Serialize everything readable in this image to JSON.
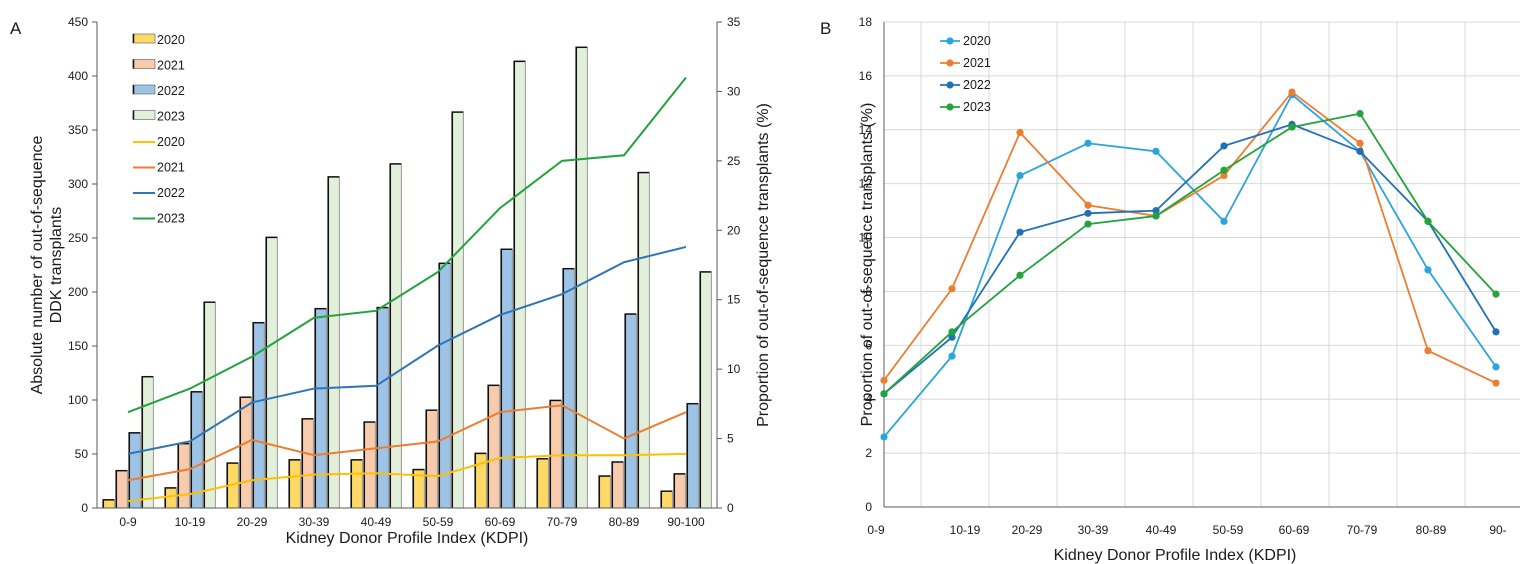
{
  "panel_a_label": "A",
  "panel_b_label": "B",
  "chart_data": [
    {
      "panel": "A",
      "type": "bar",
      "categories": [
        "0-9",
        "10-19",
        "20-29",
        "30-39",
        "40-49",
        "50-59",
        "60-69",
        "70-79",
        "80-89",
        "90-100"
      ],
      "xlabel": "Kidney Donor Profile Index (KDPI)",
      "ylabel": "Absolute number of out-of-sequence DDK transplants",
      "ylabel_lines": [
        "Absolute number of out-of-sequence",
        "DDK transplants"
      ],
      "y2label": "Proportion of out-of-sequence transplants (%)",
      "ylim": [
        0,
        450
      ],
      "y2lim": [
        0,
        35
      ],
      "yticks": [
        0,
        50,
        100,
        150,
        200,
        250,
        300,
        350,
        400,
        450
      ],
      "y2ticks": [
        0,
        5,
        10,
        15,
        20,
        25,
        30,
        35
      ],
      "legend_position": "top-left",
      "bar_series": [
        {
          "name": "2020",
          "color": "#FFD966",
          "values": [
            8,
            19,
            42,
            45,
            45,
            36,
            51,
            46,
            30,
            16
          ]
        },
        {
          "name": "2021",
          "color": "#F8CBAD",
          "values": [
            35,
            60,
            103,
            83,
            80,
            91,
            114,
            100,
            43,
            32
          ]
        },
        {
          "name": "2022",
          "color": "#9DC3E6",
          "values": [
            70,
            108,
            172,
            185,
            186,
            227,
            240,
            222,
            180,
            97
          ]
        },
        {
          "name": "2023",
          "color": "#E2EFDA",
          "values": [
            122,
            191,
            251,
            307,
            319,
            367,
            414,
            427,
            311,
            219
          ]
        }
      ],
      "line_series": [
        {
          "name": "2020",
          "color": "#FFC000",
          "values": [
            0.5,
            1.0,
            2.0,
            2.4,
            2.5,
            2.3,
            3.6,
            3.8,
            3.8,
            3.9
          ]
        },
        {
          "name": "2021",
          "color": "#ED7D31",
          "values": [
            2.0,
            2.8,
            4.9,
            3.8,
            4.3,
            4.8,
            6.9,
            7.4,
            5.0,
            6.9
          ]
        },
        {
          "name": "2022",
          "color": "#2E75B6",
          "values": [
            3.9,
            4.8,
            7.6,
            8.6,
            8.8,
            11.7,
            13.9,
            15.4,
            17.7,
            18.8
          ]
        },
        {
          "name": "2023",
          "color": "#22A33B",
          "values": [
            6.9,
            8.6,
            10.9,
            13.7,
            14.2,
            17.0,
            21.6,
            25.0,
            25.4,
            31.0
          ]
        }
      ]
    },
    {
      "panel": "B",
      "type": "line",
      "categories": [
        "0-9",
        "10-19",
        "20-29",
        "30-39",
        "40-49",
        "50-59",
        "60-69",
        "70-79",
        "80-89",
        "90-100"
      ],
      "category_labels_visible": [
        "0-9",
        "10-19",
        "20-29",
        "30-39",
        "40-49",
        "50-59",
        "60-69",
        "70-79",
        "80-89",
        "90-"
      ],
      "xlabel": "Kidney Donor Profile Index (KDPI)",
      "ylabel": "Proportion of out-of-sequence transplants (%)",
      "ylim": [
        0,
        18
      ],
      "yticks": [
        0,
        2,
        4,
        6,
        8,
        10,
        12,
        14,
        16,
        18
      ],
      "grid": true,
      "legend_position": "top-left",
      "series": [
        {
          "name": "2020",
          "color": "#2AA5DB",
          "values": [
            2.6,
            5.6,
            12.3,
            13.5,
            13.2,
            10.6,
            15.3,
            13.2,
            8.8,
            5.2
          ]
        },
        {
          "name": "2021",
          "color": "#ED7D31",
          "values": [
            4.7,
            8.1,
            13.9,
            11.2,
            10.8,
            12.3,
            15.4,
            13.5,
            5.8,
            4.6
          ]
        },
        {
          "name": "2022",
          "color": "#2171B5",
          "values": [
            4.2,
            6.3,
            10.2,
            10.9,
            11.0,
            13.4,
            14.2,
            13.2,
            10.6,
            6.5
          ]
        },
        {
          "name": "2023",
          "color": "#22A33B",
          "values": [
            4.2,
            6.5,
            8.6,
            10.5,
            10.8,
            12.5,
            14.1,
            14.6,
            10.6,
            7.9
          ]
        }
      ]
    }
  ]
}
